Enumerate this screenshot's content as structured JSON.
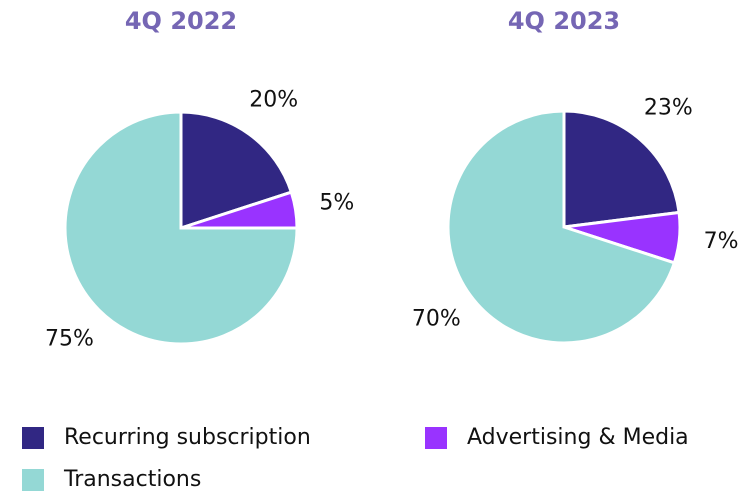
{
  "chart_data": [
    {
      "type": "pie",
      "title": "4Q 2022",
      "categories": [
        "Recurring subscription",
        "Advertising & Media",
        "Transactions"
      ],
      "values": [
        20,
        5,
        75
      ],
      "value_labels": [
        "20%",
        "5%",
        "75%"
      ],
      "colors": [
        "#312783",
        "#9933ff",
        "#94d8d5"
      ]
    },
    {
      "type": "pie",
      "title": "4Q 2023",
      "categories": [
        "Recurring subscription",
        "Advertising & Media",
        "Transactions"
      ],
      "values": [
        23,
        7,
        70
      ],
      "value_labels": [
        "23%",
        "7%",
        "70%"
      ],
      "colors": [
        "#312783",
        "#9933ff",
        "#94d8d5"
      ]
    }
  ]
}
